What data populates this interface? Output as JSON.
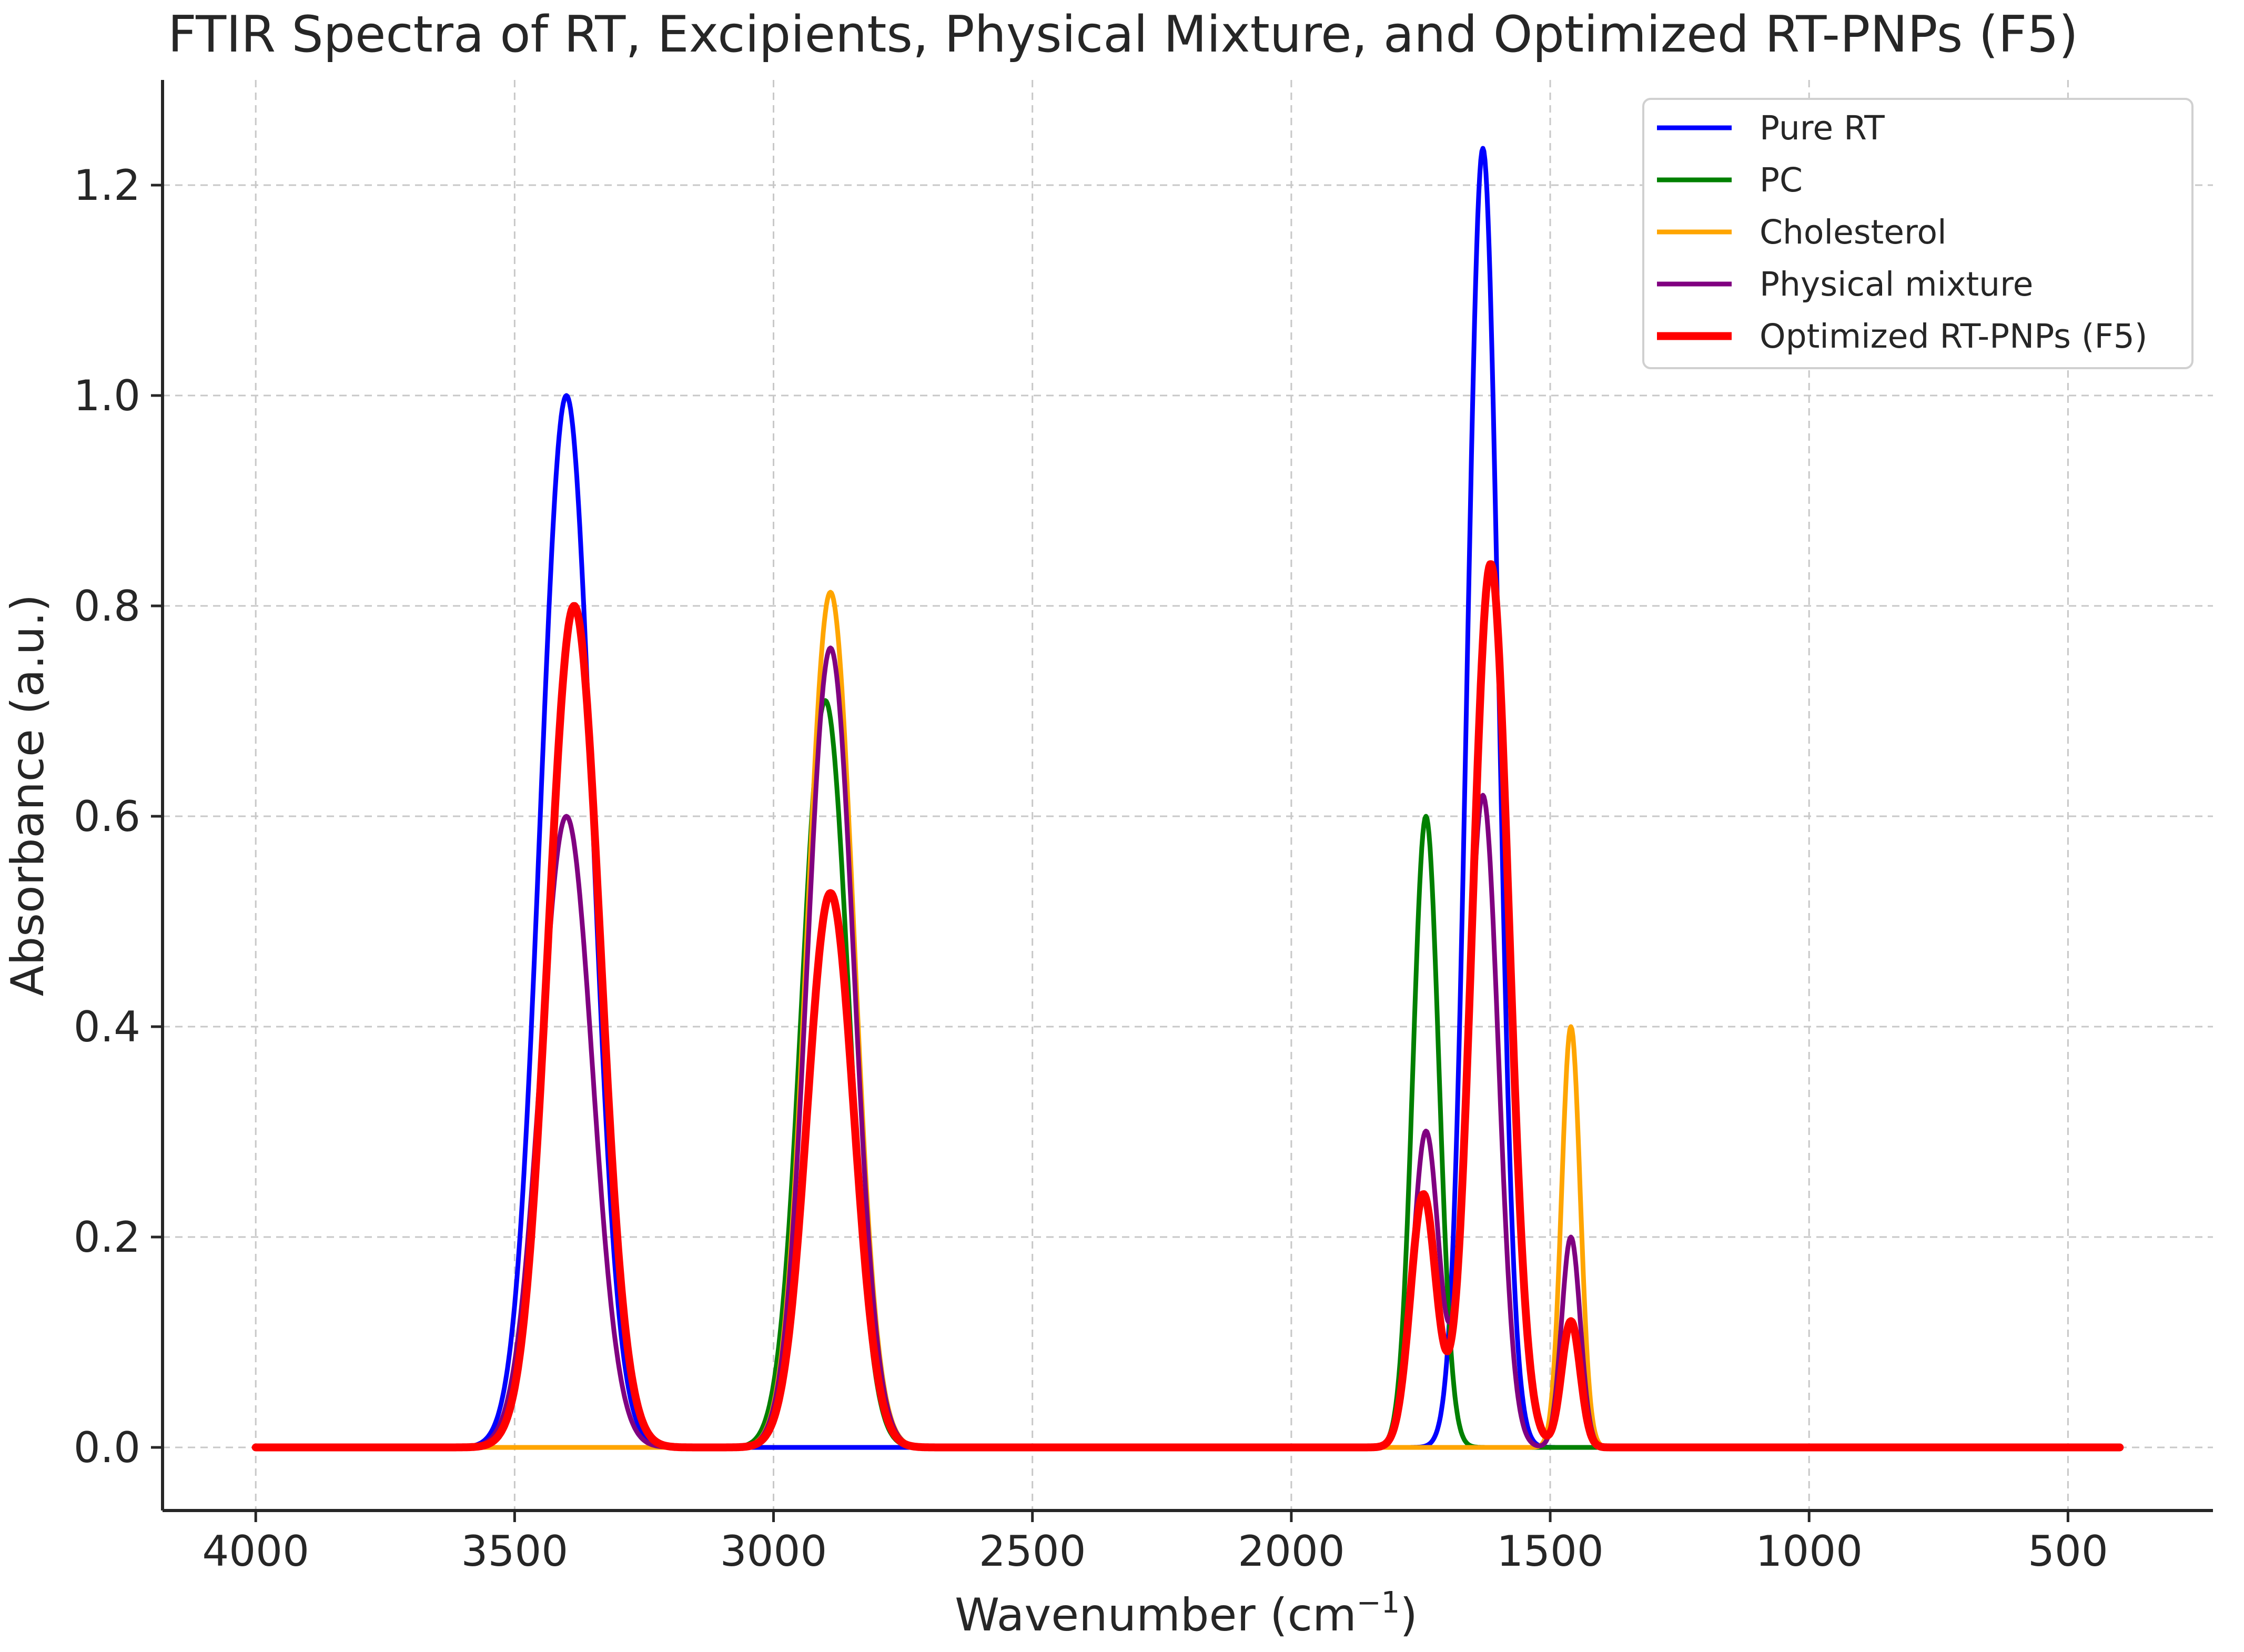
{
  "chart_data": {
    "type": "line",
    "title": "FTIR Spectra of RT, Excipients, Physical Mixture, and Optimized RT-PNPs (F5)",
    "xlabel_main": "Wavenumber (cm",
    "xlabel_sup": "−1",
    "xlabel_close": ")",
    "ylabel": "Absorbance (a.u.)",
    "xlim": [
      4180,
      220
    ],
    "ylim": [
      -0.06,
      1.3
    ],
    "x_range": [
      4000,
      400
    ],
    "x_ticks": [
      4000,
      3500,
      3000,
      2500,
      2000,
      1500,
      1000,
      500
    ],
    "x_tick_labels": [
      "4000",
      "3500",
      "3000",
      "2500",
      "2000",
      "1500",
      "1000",
      "500"
    ],
    "y_ticks": [
      0.0,
      0.2,
      0.4,
      0.6,
      0.8,
      1.0,
      1.2
    ],
    "y_tick_labels": [
      "0.0",
      "0.2",
      "0.4",
      "0.6",
      "0.8",
      "1.0",
      "1.2"
    ],
    "grid": true,
    "legend_position": "top-right",
    "series": [
      {
        "name": "Pure RT",
        "color": "#0000ff",
        "line_width": "normal",
        "peaks": [
          {
            "center": 3400,
            "height": 1.0,
            "sigma": 50
          },
          {
            "center": 1630,
            "height": 1.235,
            "sigma": 30
          }
        ]
      },
      {
        "name": "PC",
        "color": "#008000",
        "line_width": "normal",
        "peaks": [
          {
            "center": 2900,
            "height": 0.71,
            "sigma": 45
          },
          {
            "center": 1740,
            "height": 0.6,
            "sigma": 25
          }
        ]
      },
      {
        "name": "Cholesterol",
        "color": "#ffa500",
        "line_width": "normal",
        "peaks": [
          {
            "center": 2890,
            "height": 0.813,
            "sigma": 45
          },
          {
            "center": 1460,
            "height": 0.4,
            "sigma": 18
          }
        ]
      },
      {
        "name": "Physical mixture",
        "color": "#800080",
        "line_width": "normal",
        "peaks": [
          {
            "center": 3400,
            "height": 0.6,
            "sigma": 50
          },
          {
            "center": 2890,
            "height": 0.76,
            "sigma": 45
          },
          {
            "center": 1740,
            "height": 0.3,
            "sigma": 25
          },
          {
            "center": 1630,
            "height": 0.62,
            "sigma": 30
          },
          {
            "center": 1460,
            "height": 0.2,
            "sigma": 18
          }
        ]
      },
      {
        "name": "Optimized RT-PNPs (F5)",
        "color": "#ff0000",
        "line_width": "thick",
        "peaks": [
          {
            "center": 3385,
            "height": 0.8,
            "sigma": 50
          },
          {
            "center": 2890,
            "height": 0.527,
            "sigma": 45
          },
          {
            "center": 1745,
            "height": 0.24,
            "sigma": 25
          },
          {
            "center": 1615,
            "height": 0.84,
            "sigma": 35
          },
          {
            "center": 1460,
            "height": 0.12,
            "sigma": 18
          }
        ]
      }
    ]
  }
}
